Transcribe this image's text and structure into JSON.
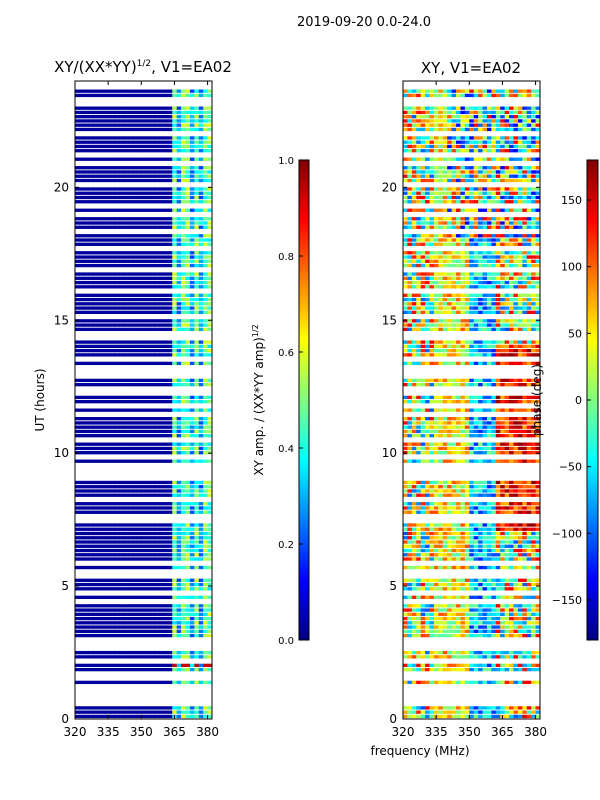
{
  "figure": {
    "suptitle": "2019-09-20 0.0-24.0",
    "shared_xlabel": "frequency (MHz)"
  },
  "chart_data": [
    {
      "type": "heatmap",
      "title_main": "XY/(XX*YY)",
      "title_sup": "1/2",
      "title_tail": ", V1=EA02",
      "ylabel": "UT (hours)",
      "x_ticks": [
        320,
        335,
        350,
        365,
        380
      ],
      "y_ticks": [
        0,
        5,
        10,
        15,
        20
      ],
      "xlim": [
        320,
        382
      ],
      "ylim": [
        0,
        24
      ],
      "colorbar": {
        "label_main": "XY amp. / (XX*YY amp)",
        "label_sup": "1/2",
        "ticks": [
          "0.0",
          "0.2",
          "0.4",
          "0.6",
          "0.8",
          "1.0"
        ],
        "range": [
          0,
          1
        ],
        "colormap": "jet"
      }
    },
    {
      "type": "heatmap",
      "title": "XY, V1=EA02",
      "x_ticks": [
        320,
        335,
        350,
        365,
        380
      ],
      "y_ticks": [
        0,
        5,
        10,
        15,
        20
      ],
      "xlim": [
        320,
        382
      ],
      "ylim": [
        0,
        24
      ],
      "colorbar": {
        "label": "phase (deg)",
        "ticks": [
          "150",
          "100",
          "50",
          "0",
          "−50",
          "−100",
          "−150"
        ],
        "tick_values": [
          150,
          100,
          50,
          0,
          -50,
          -100,
          -150
        ],
        "range": [
          -180,
          180
        ],
        "colormap": "jet"
      }
    }
  ],
  "colors": {
    "jet": [
      "#000080",
      "#0000ff",
      "#0080ff",
      "#00ffff",
      "#80ff80",
      "#ffff00",
      "#ff8000",
      "#ff0000",
      "#800000"
    ],
    "background": "#ffffff",
    "axis": "#000000"
  }
}
